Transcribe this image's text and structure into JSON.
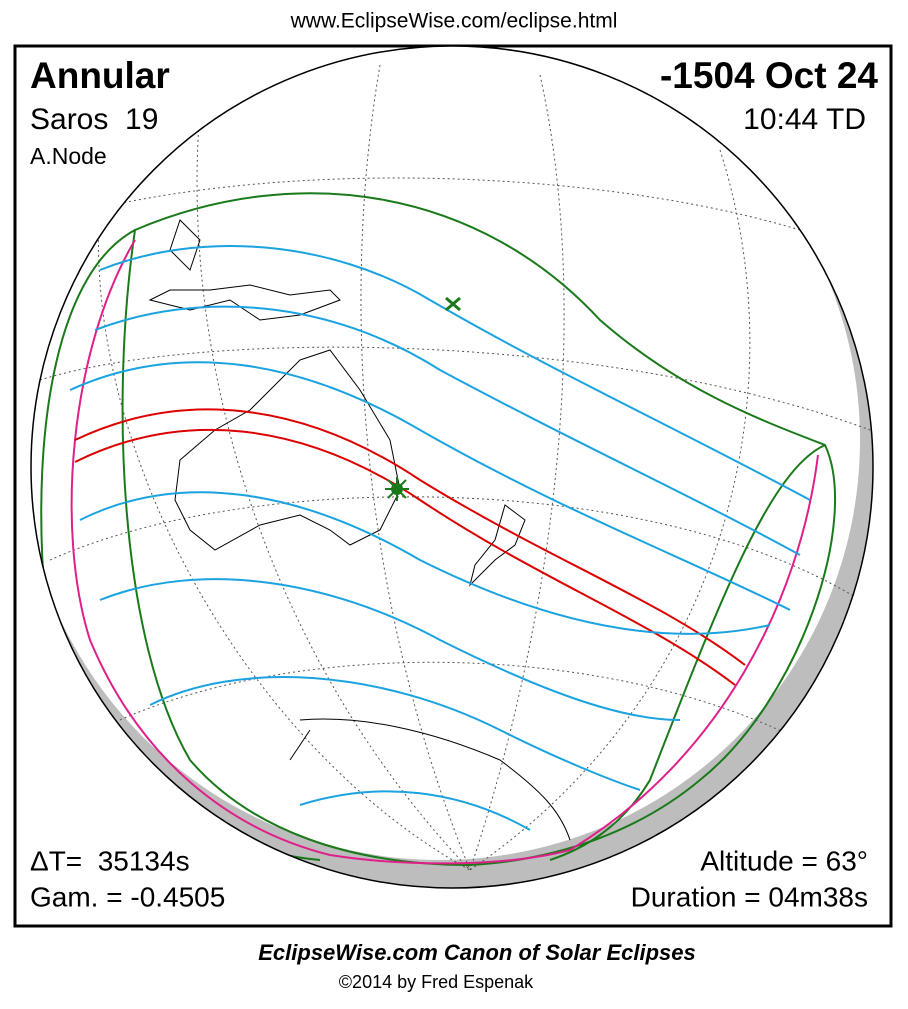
{
  "header": {
    "url": "www.EclipseWise.com/eclipse.html"
  },
  "eclipse": {
    "type": "Annular",
    "date": "-1504 Oct 24",
    "saros": "Saros  19",
    "time": "10:44 TD",
    "node": "A.Node"
  },
  "parameters": {
    "delta_t": "ΔT=  35134s",
    "gamma": "Gam. = -0.4505",
    "altitude": "Altitude = 63°",
    "duration": "Duration = 04m38s"
  },
  "footer": {
    "canon": "EclipseWise.com Canon of Solar Eclipses",
    "copyright": "©2014 by Fred Espenak"
  }
}
